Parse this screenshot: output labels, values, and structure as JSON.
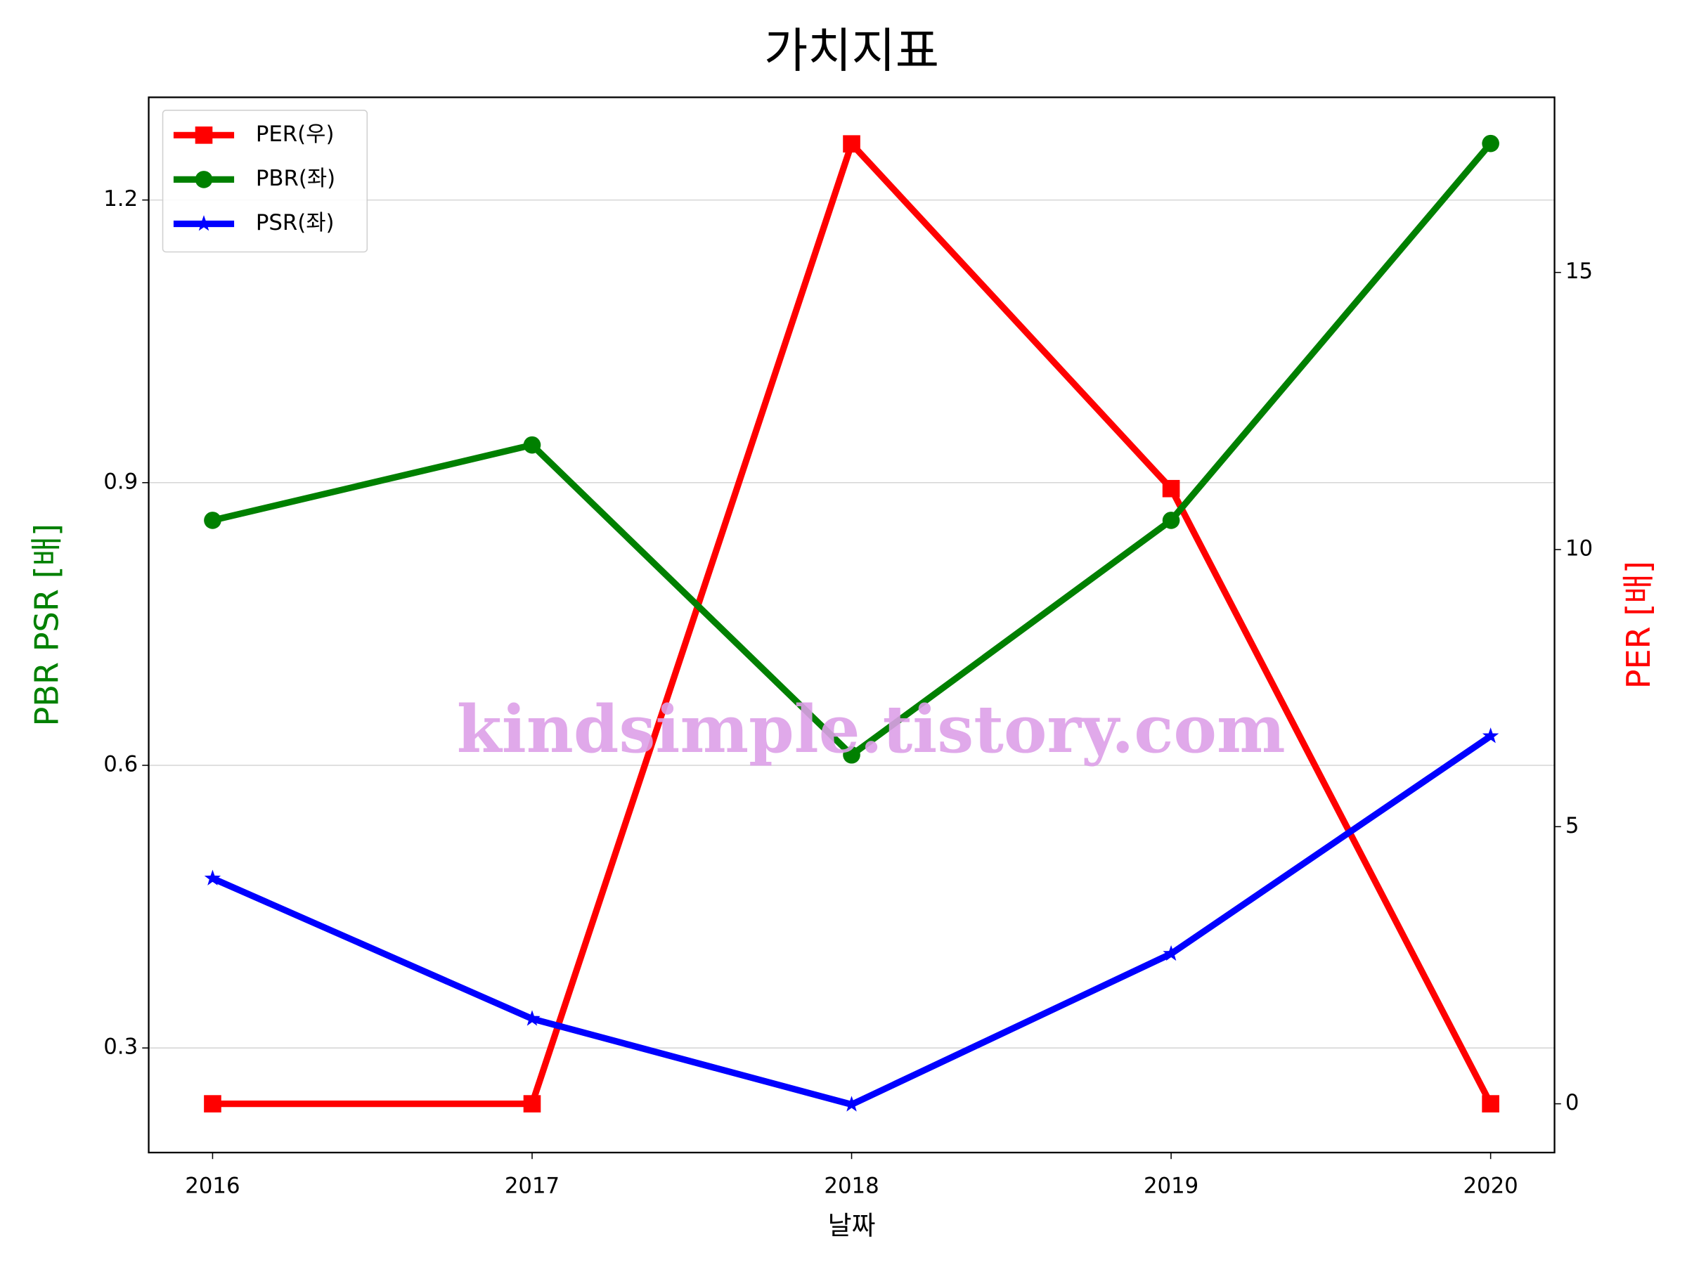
{
  "chart_data": {
    "type": "line",
    "title": "가치지표",
    "x_label": "날짜",
    "y_label": "PBR PSR [배]",
    "y2_label": "PER [배]",
    "y_label_color": "green",
    "y2_label_color": "red",
    "watermark": "kindsimple.tistory.com",
    "x": [
      2016,
      2017,
      2018,
      2019,
      2020
    ],
    "xlim": [
      2015.8,
      2020.2
    ],
    "xticks": [
      2016,
      2017,
      2018,
      2019,
      2020
    ],
    "ylim": [
      0.189,
      1.309
    ],
    "yticks": [
      0.3,
      0.6,
      0.9,
      1.2
    ],
    "y2lim": [
      -0.88,
      18.16
    ],
    "y2ticks": [
      0,
      5,
      10,
      15
    ],
    "grid": true,
    "legend": "upper left",
    "series": [
      {
        "name": "PER(우)",
        "color": "red",
        "marker": "square",
        "axis": "y2",
        "values": [
          0,
          0,
          17.32,
          11.1,
          0
        ]
      },
      {
        "name": "PBR(좌)",
        "color": "green",
        "marker": "circle",
        "values": [
          0.86,
          0.94,
          0.611,
          0.86,
          1.26
        ]
      },
      {
        "name": "PSR(좌)",
        "color": "blue",
        "marker": "star",
        "values": [
          0.48,
          0.331,
          0.24,
          0.4,
          0.631
        ]
      }
    ]
  }
}
